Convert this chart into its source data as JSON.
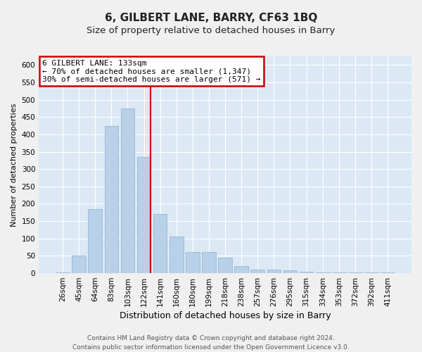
{
  "title": "6, GILBERT LANE, BARRY, CF63 1BQ",
  "subtitle": "Size of property relative to detached houses in Barry",
  "xlabel": "Distribution of detached houses by size in Barry",
  "ylabel": "Number of detached properties",
  "categories": [
    "26sqm",
    "45sqm",
    "64sqm",
    "83sqm",
    "103sqm",
    "122sqm",
    "141sqm",
    "160sqm",
    "180sqm",
    "199sqm",
    "218sqm",
    "238sqm",
    "257sqm",
    "276sqm",
    "295sqm",
    "315sqm",
    "334sqm",
    "353sqm",
    "372sqm",
    "392sqm",
    "411sqm"
  ],
  "values": [
    3,
    50,
    185,
    425,
    475,
    335,
    170,
    105,
    60,
    60,
    45,
    20,
    10,
    10,
    8,
    5,
    3,
    2,
    2,
    2,
    2
  ],
  "bar_color": "#b8d0e8",
  "bar_edge_color": "#93b8d8",
  "background_color": "#dce9f5",
  "grid_color": "#ffffff",
  "vline_x_index": 5.42,
  "vline_color": "#cc0000",
  "annotation_line1": "6 GILBERT LANE: 133sqm",
  "annotation_line2": "← 70% of detached houses are smaller (1,347)",
  "annotation_line3": "30% of semi-detached houses are larger (571) →",
  "annotation_box_color": "#ffffff",
  "annotation_box_edge_color": "#cc0000",
  "ylim": [
    0,
    625
  ],
  "yticks": [
    0,
    50,
    100,
    150,
    200,
    250,
    300,
    350,
    400,
    450,
    500,
    550,
    600
  ],
  "footer_line1": "Contains HM Land Registry data © Crown copyright and database right 2024.",
  "footer_line2": "Contains public sector information licensed under the Open Government Licence v3.0.",
  "title_fontsize": 11,
  "subtitle_fontsize": 9.5,
  "xlabel_fontsize": 9,
  "ylabel_fontsize": 8,
  "tick_fontsize": 7.5,
  "annotation_fontsize": 8,
  "footer_fontsize": 6.5
}
